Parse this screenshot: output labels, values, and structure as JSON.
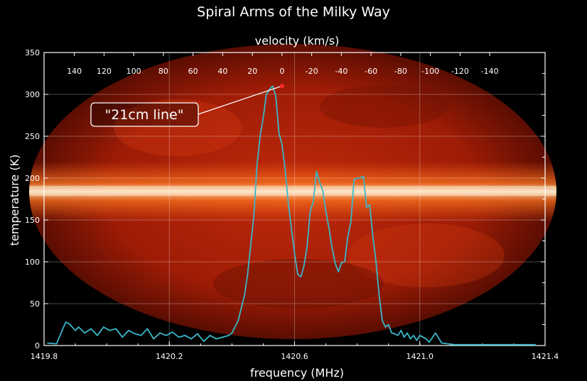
{
  "chart_data": {
    "type": "line",
    "title": "Spiral Arms of the Milky Way",
    "xlabel": "frequency (MHz)",
    "ylabel": "temperature (K)",
    "x2label": "velocity (km/s)",
    "xlim": [
      1419.8,
      1421.4
    ],
    "ylim": [
      0,
      350
    ],
    "x_ticks": [
      "1419.8",
      "1420.2",
      "1420.6",
      "1421.0",
      "1421.4"
    ],
    "y_ticks": [
      "0",
      "50",
      "100",
      "150",
      "200",
      "250",
      "300",
      "350"
    ],
    "velocity_ticks": [
      "140",
      "120",
      "100",
      "80",
      "60",
      "40",
      "20",
      "0",
      "-20",
      "-40",
      "-60",
      "-80",
      "-100",
      "-120",
      "-140"
    ],
    "grid": true,
    "line_color": "#3ab7c9",
    "annotation": {
      "text": "\"21cm line\"",
      "x": 1420.56,
      "y": 310
    },
    "series": [
      {
        "x": [
          1419.81,
          1419.84,
          1419.86,
          1419.87,
          1419.88,
          1419.9,
          1419.91,
          1419.93,
          1419.95,
          1419.97,
          1419.99,
          1420.01,
          1420.03,
          1420.05,
          1420.07,
          1420.09,
          1420.11,
          1420.13,
          1420.15,
          1420.17,
          1420.19,
          1420.21,
          1420.23,
          1420.25,
          1420.27,
          1420.29,
          1420.31,
          1420.33,
          1420.35,
          1420.37,
          1420.39,
          1420.4,
          1420.42,
          1420.44,
          1420.45,
          1420.46,
          1420.47,
          1420.48,
          1420.49,
          1420.5,
          1420.51,
          1420.52,
          1420.53,
          1420.54,
          1420.55,
          1420.56,
          1420.57,
          1420.58,
          1420.59,
          1420.6,
          1420.61,
          1420.62,
          1420.63,
          1420.64,
          1420.65,
          1420.66,
          1420.67,
          1420.68,
          1420.69,
          1420.7,
          1420.71,
          1420.72,
          1420.73,
          1420.74,
          1420.75,
          1420.76,
          1420.77,
          1420.78,
          1420.79,
          1420.8,
          1420.81,
          1420.82,
          1420.83,
          1420.84,
          1420.85,
          1420.86,
          1420.87,
          1420.88,
          1420.89,
          1420.9,
          1420.91,
          1420.92,
          1420.93,
          1420.94,
          1420.95,
          1420.96,
          1420.97,
          1420.98,
          1420.99,
          1421.0,
          1421.01,
          1421.02,
          1421.03,
          1421.05,
          1421.07,
          1421.09,
          1421.11,
          1421.13,
          1421.15,
          1421.17,
          1421.19,
          1421.21,
          1421.23,
          1421.25,
          1421.27,
          1421.29,
          1421.31,
          1421.33,
          1421.35,
          1421.37
        ],
        "y": [
          3,
          2,
          20,
          28,
          26,
          18,
          22,
          15,
          20,
          12,
          22,
          18,
          20,
          10,
          18,
          14,
          12,
          20,
          8,
          15,
          12,
          16,
          10,
          12,
          8,
          14,
          5,
          12,
          8,
          10,
          12,
          15,
          30,
          60,
          85,
          120,
          155,
          215,
          250,
          272,
          300,
          306,
          310,
          298,
          254,
          240,
          210,
          170,
          140,
          110,
          85,
          82,
          95,
          118,
          160,
          172,
          208,
          195,
          185,
          160,
          140,
          116,
          98,
          88,
          99,
          100,
          130,
          148,
          198,
          200,
          200,
          202,
          165,
          168,
          130,
          100,
          60,
          30,
          22,
          25,
          15,
          14,
          12,
          18,
          10,
          15,
          8,
          12,
          6,
          12,
          10,
          8,
          4,
          15,
          3,
          2,
          1,
          1,
          1,
          1,
          1,
          1,
          1,
          1,
          1,
          1,
          1,
          1,
          1,
          1
        ]
      }
    ]
  }
}
